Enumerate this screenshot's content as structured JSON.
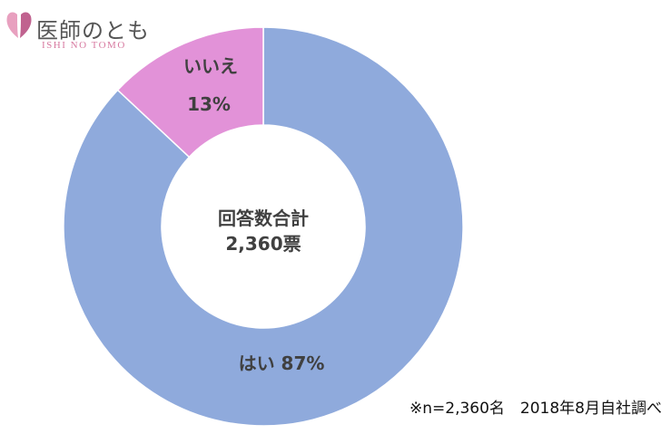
{
  "logo": {
    "title": "医師のとも",
    "subtitle": "ISHI NO TOMO",
    "mark_colors": [
      "#e8a0bf",
      "#c0628f"
    ]
  },
  "chart_data": {
    "type": "pie",
    "donut": true,
    "center_label": [
      "回答数合計",
      "2,360票"
    ],
    "slices": [
      {
        "label": "はい",
        "value": 87,
        "value_label": "87%",
        "color": "#8faadc"
      },
      {
        "label": "いいえ",
        "value": 13,
        "value_label": "13%",
        "color": "#e292d8"
      }
    ]
  },
  "footnote": "※n=2,360名　2018年8月自社調べ"
}
